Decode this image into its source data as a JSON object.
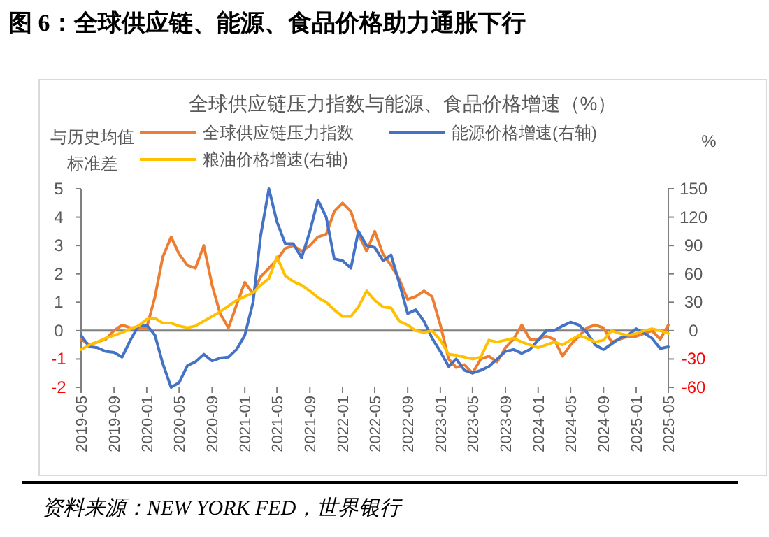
{
  "chart_data": {
    "type": "line",
    "title": "图 6：全球供应链、能源、食品价格助力通胀下行",
    "subtitle": "全球供应链压力指数与能源、食品价格增速（%）",
    "ylabel": "与历史均值标准差",
    "y2label": "%",
    "annotations": [
      "资料来源：NEW YORK FED，世界银行"
    ],
    "x": [
      "2019-05",
      "2019-06",
      "2019-07",
      "2019-08",
      "2019-09",
      "2019-10",
      "2019-11",
      "2019-12",
      "2020-01",
      "2020-02",
      "2020-03",
      "2020-04",
      "2020-05",
      "2020-06",
      "2020-07",
      "2020-08",
      "2020-09",
      "2020-10",
      "2020-11",
      "2020-12",
      "2021-01",
      "2021-02",
      "2021-03",
      "2021-04",
      "2021-05",
      "2021-06",
      "2021-07",
      "2021-08",
      "2021-09",
      "2021-10",
      "2021-11",
      "2021-12",
      "2022-01",
      "2022-02",
      "2022-03",
      "2022-04",
      "2022-05",
      "2022-06",
      "2022-07",
      "2022-08",
      "2022-09",
      "2022-10",
      "2022-11",
      "2022-12",
      "2023-01",
      "2023-02",
      "2023-03",
      "2023-04",
      "2023-05",
      "2023-06",
      "2023-07",
      "2023-08",
      "2023-09",
      "2023-10",
      "2023-11",
      "2023-12",
      "2024-01",
      "2024-02",
      "2024-03",
      "2024-04",
      "2024-05",
      "2024-06",
      "2024-07",
      "2024-08",
      "2024-09",
      "2024-10",
      "2024-11",
      "2024-12",
      "2025-01",
      "2025-02",
      "2025-03",
      "2025-04",
      "2025-05"
    ],
    "series": [
      {
        "name": "全球供应链压力指数",
        "color": "#ed7d31",
        "values": [
          -0.3,
          -0.5,
          -0.4,
          -0.3,
          0.0,
          0.2,
          0.1,
          0.1,
          0.1,
          1.2,
          2.6,
          3.3,
          2.7,
          2.3,
          2.2,
          3.0,
          1.6,
          0.6,
          0.1,
          0.9,
          1.7,
          1.3,
          1.9,
          2.2,
          2.5,
          2.9,
          3.0,
          2.8,
          3.0,
          3.3,
          3.4,
          4.2,
          4.5,
          4.2,
          3.4,
          2.8,
          3.5,
          2.7,
          2.3,
          1.8,
          1.1,
          1.2,
          1.4,
          1.2,
          0.2,
          -1.0,
          -1.3,
          -1.2,
          -1.5,
          -1.0,
          -0.9,
          -1.1,
          -0.6,
          -0.3,
          0.2,
          -0.3,
          -0.3,
          -0.2,
          -0.3,
          -0.9,
          -0.5,
          -0.2,
          0.1,
          0.2,
          0.1,
          -0.4,
          -0.3,
          -0.2,
          -0.2,
          -0.1,
          0.0,
          -0.3,
          0.2
        ]
      },
      {
        "name": "能源价格增速(右轴)",
        "color": "#4472c4",
        "axis": "y2",
        "values": [
          -5,
          -17,
          -18,
          -22,
          -23,
          -28,
          -10,
          5,
          6,
          -5,
          -35,
          -60,
          -55,
          -37,
          -33,
          -25,
          -32,
          -29,
          -28,
          -20,
          -5,
          30,
          100,
          150,
          115,
          92,
          92,
          77,
          105,
          138,
          120,
          76,
          74,
          66,
          105,
          90,
          88,
          74,
          80,
          50,
          18,
          22,
          10,
          -8,
          -22,
          -38,
          -30,
          -42,
          -45,
          -42,
          -38,
          -30,
          -22,
          -20,
          -24,
          -20,
          -10,
          0,
          0,
          5,
          9,
          6,
          -2,
          -15,
          -20,
          -14,
          -8,
          -5,
          2,
          -3,
          -8,
          -19,
          -17
        ]
      },
      {
        "name": "粮油价格增速(右轴)",
        "color": "#ffc000",
        "axis": "y2",
        "values": [
          -20,
          -15,
          -12,
          -8,
          -5,
          -2,
          2,
          5,
          12,
          13,
          8,
          8,
          5,
          3,
          5,
          10,
          15,
          20,
          26,
          32,
          36,
          40,
          48,
          55,
          78,
          58,
          52,
          48,
          42,
          35,
          30,
          22,
          15,
          15,
          25,
          42,
          32,
          25,
          24,
          10,
          6,
          0,
          -2,
          0,
          -10,
          -25,
          -26,
          -28,
          -30,
          -28,
          -10,
          -12,
          -10,
          -8,
          -12,
          -15,
          -18,
          -15,
          -12,
          -15,
          -10,
          -5,
          -8,
          -12,
          -10,
          0,
          -3,
          -5,
          -3,
          0,
          2,
          0,
          -3
        ]
      }
    ],
    "xlim": [
      "2019-05",
      "2025-05"
    ],
    "xticks": [
      "2019-05",
      "2019-09",
      "2020-01",
      "2020-05",
      "2020-09",
      "2021-01",
      "2021-05",
      "2021-09",
      "2022-01",
      "2022-05",
      "2022-09",
      "2023-01",
      "2023-05",
      "2023-09",
      "2024-01",
      "2024-05",
      "2024-09",
      "2025-01",
      "2025-05"
    ],
    "ylim": [
      -2,
      5
    ],
    "yticks": [
      -2,
      -1,
      0,
      1,
      2,
      3,
      4,
      5
    ],
    "y2lim": [
      -60,
      150
    ],
    "y2ticks": [
      -60,
      -30,
      0,
      30,
      60,
      90,
      120,
      150
    ],
    "legend": "top",
    "marker": "none",
    "line_style": "solid"
  }
}
